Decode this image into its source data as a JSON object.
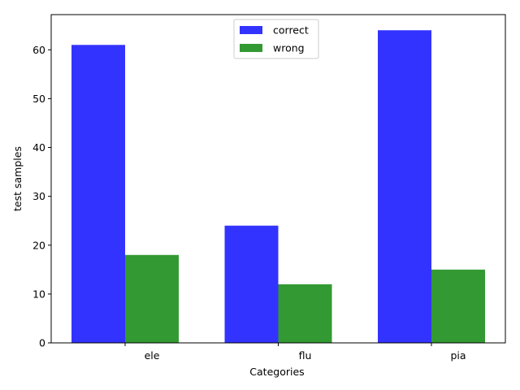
{
  "chart_data": {
    "type": "bar",
    "categories": [
      "ele",
      "flu",
      "pia"
    ],
    "series": [
      {
        "name": "correct",
        "values": [
          61,
          24,
          64
        ],
        "color": "#3333ff"
      },
      {
        "name": "wrong",
        "values": [
          18,
          12,
          15
        ],
        "color": "#339933"
      }
    ],
    "xlabel": "Categories",
    "ylabel": "test samples",
    "ylim": [
      0,
      67.2
    ],
    "yticks": [
      0,
      10,
      20,
      30,
      40,
      50,
      60
    ],
    "grid": false,
    "legend_position": "top-center"
  }
}
